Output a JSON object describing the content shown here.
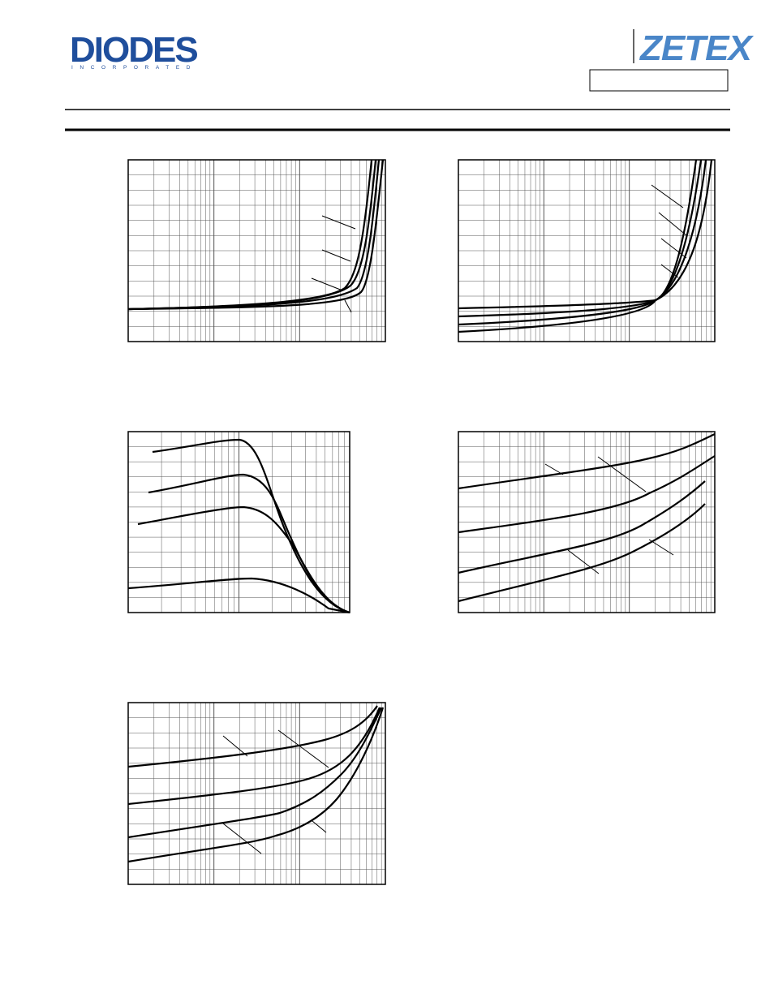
{
  "header": {
    "logo_left": "DIODES",
    "logo_left_sub": "INCORPORATED",
    "logo_right": "ZETEX"
  }
}
